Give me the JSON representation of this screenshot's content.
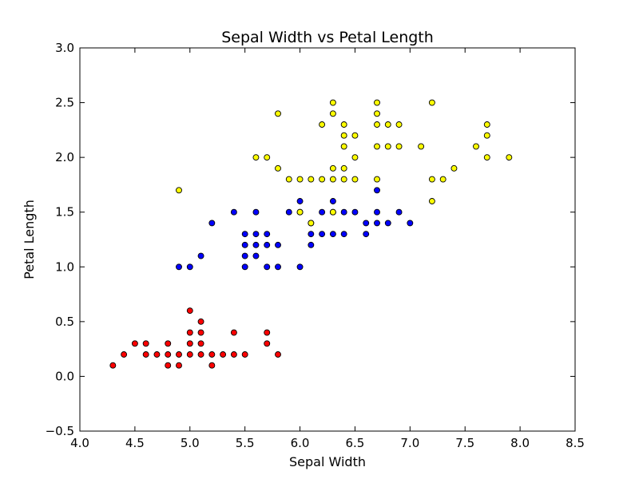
{
  "chart_data": {
    "type": "scatter",
    "title": "Sepal Width vs Petal Length",
    "xlabel": "Sepal Width",
    "ylabel": "Petal Length",
    "xlim": [
      4.0,
      8.5
    ],
    "ylim": [
      -0.5,
      3.0
    ],
    "xticks": [
      "4.0",
      "4.5",
      "5.0",
      "5.5",
      "6.0",
      "6.5",
      "7.0",
      "7.5",
      "8.0",
      "8.5"
    ],
    "yticks": [
      "−0.5",
      "0.0",
      "0.5",
      "1.0",
      "1.5",
      "2.0",
      "2.5",
      "3.0"
    ],
    "grid": false,
    "series": [
      {
        "color": "#ff0000",
        "points": [
          [
            4.3,
            0.1
          ],
          [
            4.4,
            0.2
          ],
          [
            4.5,
            0.3
          ],
          [
            4.6,
            0.2
          ],
          [
            4.6,
            0.3
          ],
          [
            4.7,
            0.2
          ],
          [
            4.8,
            0.1
          ],
          [
            4.8,
            0.2
          ],
          [
            4.8,
            0.3
          ],
          [
            4.9,
            0.1
          ],
          [
            4.9,
            0.2
          ],
          [
            5.0,
            0.2
          ],
          [
            5.0,
            0.3
          ],
          [
            5.0,
            0.4
          ],
          [
            5.0,
            0.6
          ],
          [
            5.1,
            0.2
          ],
          [
            5.1,
            0.3
          ],
          [
            5.1,
            0.4
          ],
          [
            5.1,
            0.5
          ],
          [
            5.2,
            0.1
          ],
          [
            5.2,
            0.2
          ],
          [
            5.3,
            0.2
          ],
          [
            5.4,
            0.2
          ],
          [
            5.4,
            0.4
          ],
          [
            5.5,
            0.2
          ],
          [
            5.7,
            0.3
          ],
          [
            5.7,
            0.4
          ],
          [
            5.8,
            0.2
          ]
        ]
      },
      {
        "color": "#0000ff",
        "points": [
          [
            4.9,
            1.0
          ],
          [
            5.0,
            1.0
          ],
          [
            5.1,
            1.1
          ],
          [
            5.2,
            1.4
          ],
          [
            5.4,
            1.5
          ],
          [
            5.5,
            1.0
          ],
          [
            5.5,
            1.1
          ],
          [
            5.5,
            1.2
          ],
          [
            5.5,
            1.3
          ],
          [
            5.6,
            1.1
          ],
          [
            5.6,
            1.2
          ],
          [
            5.6,
            1.3
          ],
          [
            5.6,
            1.5
          ],
          [
            5.7,
            1.0
          ],
          [
            5.7,
            1.2
          ],
          [
            5.7,
            1.3
          ],
          [
            5.8,
            1.0
          ],
          [
            5.8,
            1.2
          ],
          [
            5.9,
            1.5
          ],
          [
            6.0,
            1.0
          ],
          [
            6.0,
            1.5
          ],
          [
            6.0,
            1.6
          ],
          [
            6.1,
            1.2
          ],
          [
            6.1,
            1.3
          ],
          [
            6.1,
            1.4
          ],
          [
            6.2,
            1.3
          ],
          [
            6.2,
            1.5
          ],
          [
            6.3,
            1.3
          ],
          [
            6.3,
            1.5
          ],
          [
            6.3,
            1.6
          ],
          [
            6.4,
            1.3
          ],
          [
            6.4,
            1.5
          ],
          [
            6.5,
            1.5
          ],
          [
            6.6,
            1.3
          ],
          [
            6.6,
            1.4
          ],
          [
            6.7,
            1.4
          ],
          [
            6.7,
            1.5
          ],
          [
            6.7,
            1.7
          ],
          [
            6.8,
            1.4
          ],
          [
            6.9,
            1.5
          ],
          [
            7.0,
            1.4
          ]
        ]
      },
      {
        "color": "#ffff00",
        "points": [
          [
            4.9,
            1.7
          ],
          [
            5.6,
            2.0
          ],
          [
            5.7,
            2.0
          ],
          [
            5.8,
            1.9
          ],
          [
            5.8,
            2.4
          ],
          [
            5.9,
            1.8
          ],
          [
            6.0,
            1.5
          ],
          [
            6.0,
            1.8
          ],
          [
            6.1,
            1.4
          ],
          [
            6.1,
            1.8
          ],
          [
            6.2,
            1.8
          ],
          [
            6.2,
            2.3
          ],
          [
            6.3,
            1.5
          ],
          [
            6.3,
            1.8
          ],
          [
            6.3,
            1.9
          ],
          [
            6.3,
            2.4
          ],
          [
            6.3,
            2.5
          ],
          [
            6.4,
            1.8
          ],
          [
            6.4,
            1.9
          ],
          [
            6.4,
            2.1
          ],
          [
            6.4,
            2.2
          ],
          [
            6.4,
            2.3
          ],
          [
            6.5,
            1.8
          ],
          [
            6.5,
            2.0
          ],
          [
            6.5,
            2.2
          ],
          [
            6.7,
            1.8
          ],
          [
            6.7,
            2.1
          ],
          [
            6.7,
            2.3
          ],
          [
            6.7,
            2.4
          ],
          [
            6.7,
            2.5
          ],
          [
            6.8,
            2.1
          ],
          [
            6.8,
            2.3
          ],
          [
            6.9,
            2.1
          ],
          [
            6.9,
            2.3
          ],
          [
            7.1,
            2.1
          ],
          [
            7.2,
            1.6
          ],
          [
            7.2,
            1.8
          ],
          [
            7.2,
            2.5
          ],
          [
            7.3,
            1.8
          ],
          [
            7.4,
            1.9
          ],
          [
            7.6,
            2.1
          ],
          [
            7.7,
            2.0
          ],
          [
            7.7,
            2.2
          ],
          [
            7.7,
            2.3
          ],
          [
            7.9,
            2.0
          ]
        ]
      }
    ]
  }
}
